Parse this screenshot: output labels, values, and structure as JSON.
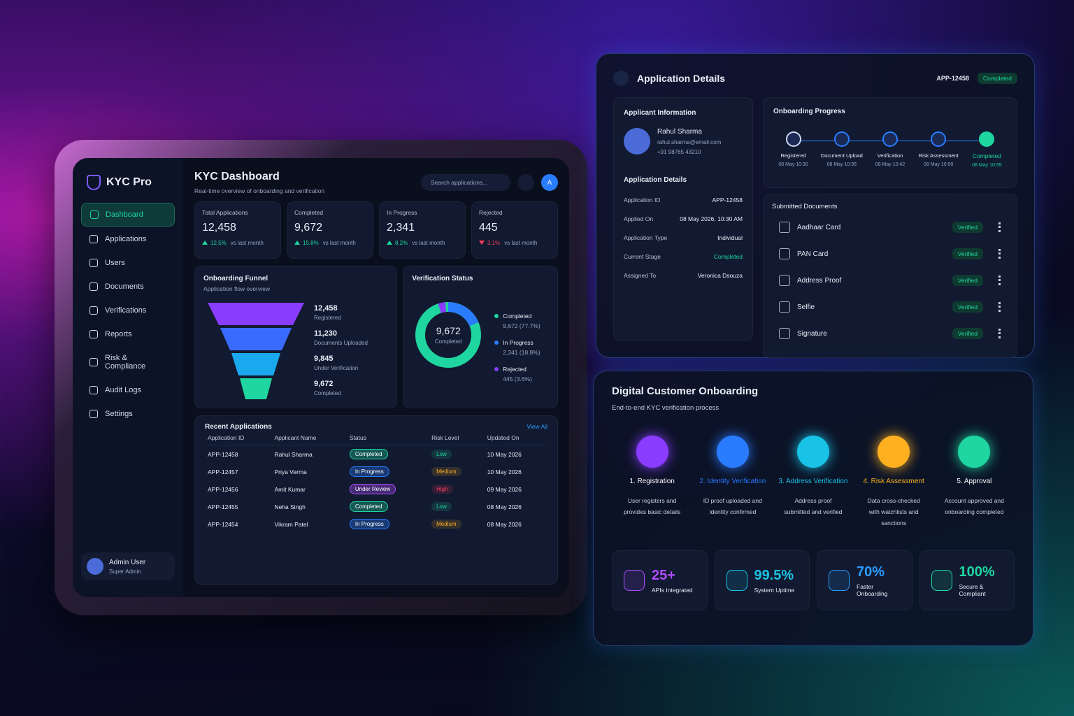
{
  "dashboard": {
    "brand": "KYC Pro",
    "nav": [
      "Dashboard",
      "Applications",
      "Users",
      "Documents",
      "Verifications",
      "Reports",
      "Risk & Compliance",
      "Audit Logs",
      "Settings"
    ],
    "user": {
      "name": "Admin User",
      "role": "Super Admin"
    },
    "title": "KYC Dashboard",
    "subtitle": "Real-time overview of onboarding and verification",
    "search_placeholder": "Search applications...",
    "avatar": "A",
    "stats": [
      {
        "label": "Total Applications",
        "value": "12,458",
        "change": "12.5%",
        "note": "vs last month",
        "trend": "up"
      },
      {
        "label": "Completed",
        "value": "9,672",
        "change": "15.8%",
        "note": "vs last month",
        "trend": "up"
      },
      {
        "label": "In Progress",
        "value": "2,341",
        "change": "8.2%",
        "note": "vs last month",
        "trend": "up"
      },
      {
        "label": "Rejected",
        "value": "445",
        "change": "3.1%",
        "note": "vs last month",
        "trend": "down"
      }
    ],
    "funnel": {
      "title": "Onboarding Funnel",
      "subtitle": "Application flow overview",
      "stages": [
        {
          "value": "12,458",
          "label": "Registered"
        },
        {
          "value": "11,230",
          "label": "Documents Uploaded"
        },
        {
          "value": "9,845",
          "label": "Under Verification"
        },
        {
          "value": "9,672",
          "label": "Completed"
        }
      ]
    },
    "verification": {
      "title": "Verification Status",
      "center_value": "9,672",
      "center_label": "Completed",
      "legend": [
        {
          "name": "Completed",
          "detail": "9,672 (77.7%)",
          "color": "#1fd6a0"
        },
        {
          "name": "In Progress",
          "detail": "2,341 (18.8%)",
          "color": "#2a7cff"
        },
        {
          "name": "Rejected",
          "detail": "445 (3.6%)",
          "color": "#8a3cff"
        }
      ]
    },
    "recent": {
      "title": "Recent Applications",
      "view_all": "View All",
      "columns": [
        "Application ID",
        "Applicant Name",
        "Status",
        "Risk Level",
        "Updated On"
      ],
      "rows": [
        {
          "id": "APP-12458",
          "name": "Rahul Sharma",
          "status": "Completed",
          "status_color": "#1fd6a0",
          "risk": "Low",
          "risk_color": "#1fd6a0",
          "updated": "10 May 2026"
        },
        {
          "id": "APP-12457",
          "name": "Priya Verma",
          "status": "In Progress",
          "status_color": "#2a7cff",
          "risk": "Medium",
          "risk_color": "#ffb020",
          "updated": "10 May 2026"
        },
        {
          "id": "APP-12456",
          "name": "Amit Kumar",
          "status": "Under Review",
          "status_color": "#b04cff",
          "risk": "High",
          "risk_color": "#ff3b5c",
          "updated": "09 May 2026"
        },
        {
          "id": "APP-12455",
          "name": "Neha Singh",
          "status": "Completed",
          "status_color": "#1fd6a0",
          "risk": "Low",
          "risk_color": "#1fd6a0",
          "updated": "08 May 2026"
        },
        {
          "id": "APP-12454",
          "name": "Vikram Patel",
          "status": "In Progress",
          "status_color": "#2a7cff",
          "risk": "Medium",
          "risk_color": "#ffb020",
          "updated": "08 May 2026"
        }
      ]
    }
  },
  "details": {
    "title": "Application Details",
    "app_id": "APP-12458",
    "status": "Completed",
    "applicant": {
      "title": "Applicant Information",
      "name": "Rahul Sharma",
      "email": "rahul.sharma@email.com",
      "phone": "+91 98765 43210"
    },
    "info": {
      "title": "Application Details",
      "rows": [
        {
          "label": "Application ID",
          "value": "APP-12458"
        },
        {
          "label": "Applied On",
          "value": "08 May 2026, 10:30 AM"
        },
        {
          "label": "Application Type",
          "value": "Individual"
        },
        {
          "label": "Current Stage",
          "value": "Completed"
        },
        {
          "label": "Assigned To",
          "value": "Veronica Dsouza"
        }
      ]
    },
    "progress": {
      "title": "Onboarding Progress",
      "steps": [
        {
          "label": "Registered",
          "time": "08 May 10:30"
        },
        {
          "label": "Document Upload",
          "time": "08 May 10:35"
        },
        {
          "label": "Verification",
          "time": "08 May 10:42"
        },
        {
          "label": "Risk Assessment",
          "time": "08 May 10:50"
        },
        {
          "label": "Completed",
          "time": "08 May 10:55"
        }
      ]
    },
    "documents": {
      "title": "Submitted Documents",
      "items": [
        {
          "name": "Aadhaar Card",
          "status": "Verified"
        },
        {
          "name": "PAN Card",
          "status": "Verified"
        },
        {
          "name": "Address Proof",
          "status": "Verified"
        },
        {
          "name": "Selfie",
          "status": "Verified"
        },
        {
          "name": "Signature",
          "status": "Verified"
        }
      ]
    }
  },
  "onboarding": {
    "title": "Digital Customer Onboarding",
    "subtitle": "End-to-end KYC verification process",
    "steps": [
      {
        "title": "1. Registration",
        "desc": "User registers and provides basic details",
        "color": "#8a3cff"
      },
      {
        "title": "2. Identity Verification",
        "desc": "ID proof uploaded and Identity confirmed",
        "color": "#2a7cff"
      },
      {
        "title": "3. Address Verification",
        "desc": "Address proof submitted and verified",
        "color": "#19c3e6"
      },
      {
        "title": "4. Risk Assessment",
        "desc": "Data cross-checked with watchlists and sanctions",
        "color": "#ffb020"
      },
      {
        "title": "5. Approval",
        "desc": "Account approved and onboarding completed",
        "color": "#1fd6a0"
      }
    ],
    "metrics": [
      {
        "value": "25+",
        "label": "APIs Integrated",
        "color": "#b04cff"
      },
      {
        "value": "99.5%",
        "label": "System Uptime",
        "color": "#19c3e6"
      },
      {
        "value": "70%",
        "label": "Faster Onboarding",
        "color": "#2a9cff"
      },
      {
        "value": "100%",
        "label": "Secure & Compliant",
        "color": "#1fd6a0"
      }
    ]
  }
}
